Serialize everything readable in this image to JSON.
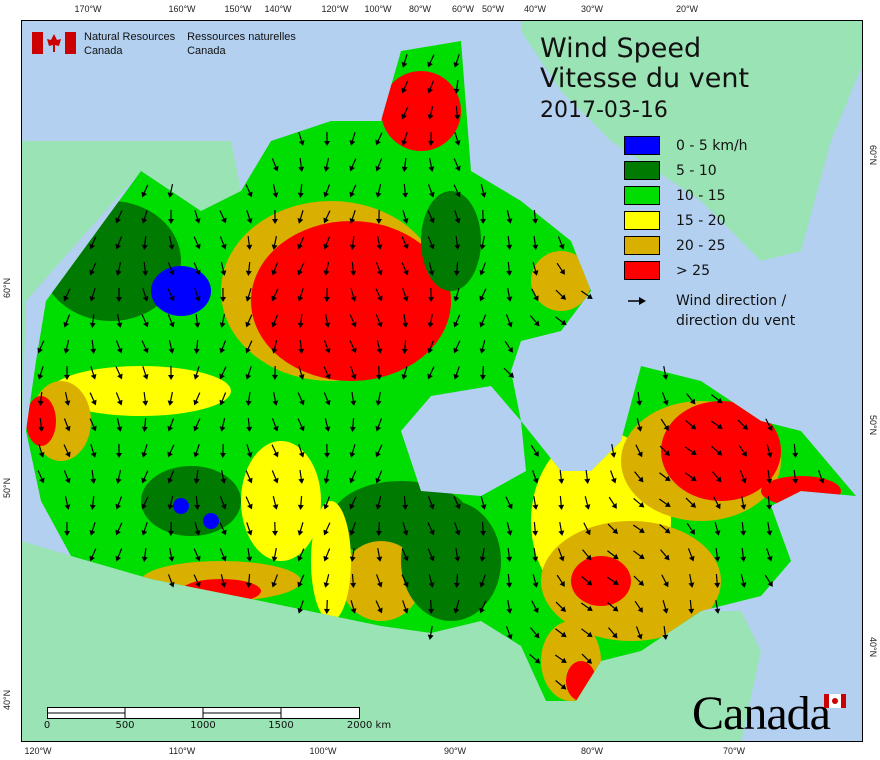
{
  "title_line1": "Wind Speed",
  "title_line2": "Vitesse du vent",
  "date": "2017-03-16",
  "agency": {
    "en_line1": "Natural Resources",
    "en_line2": "Canada",
    "fr_line1": "Ressources naturelles",
    "fr_line2": "Canada"
  },
  "wordmark": "Canada",
  "legend": {
    "items": [
      {
        "label": "0 - 5 km/h",
        "color": "#0000ff"
      },
      {
        "label": "5 - 10",
        "color": "#007a00"
      },
      {
        "label": "10 - 15",
        "color": "#00dd00"
      },
      {
        "label": "15 - 20",
        "color": "#ffff00"
      },
      {
        "label": "20 - 25",
        "color": "#d9b000"
      },
      {
        "label": "> 25",
        "color": "#ff0000"
      }
    ],
    "wind_line1": "Wind direction /",
    "wind_line2": "direction du vent",
    "wind_icon": "arrow-icon"
  },
  "axes": {
    "top": [
      "170°W",
      "160°W",
      "150°W",
      "140°W",
      "120°W",
      "100°W",
      "80°W",
      "60°W",
      "50°W",
      "40°W",
      "30°W",
      "20°W"
    ],
    "bottom": [
      "120°W",
      "110°W",
      "100°W",
      "90°W",
      "80°W",
      "70°W"
    ],
    "left": [
      "60°N",
      "50°N",
      "40°N"
    ],
    "right": [
      "60°N",
      "50°N",
      "40°N"
    ]
  },
  "scale_bar": {
    "labels": [
      "0",
      "500",
      "1000",
      "1500",
      "2000 km"
    ]
  },
  "colors": {
    "ocean": "#b3d0f0",
    "land": "#9ae3b4"
  }
}
